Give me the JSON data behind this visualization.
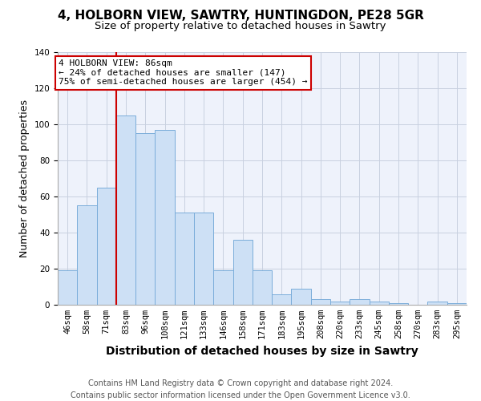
{
  "title1": "4, HOLBORN VIEW, SAWTRY, HUNTINGDON, PE28 5GR",
  "title2": "Size of property relative to detached houses in Sawtry",
  "xlabel": "Distribution of detached houses by size in Sawtry",
  "ylabel": "Number of detached properties",
  "categories": [
    "46sqm",
    "58sqm",
    "71sqm",
    "83sqm",
    "96sqm",
    "108sqm",
    "121sqm",
    "133sqm",
    "146sqm",
    "158sqm",
    "171sqm",
    "183sqm",
    "195sqm",
    "208sqm",
    "220sqm",
    "233sqm",
    "245sqm",
    "258sqm",
    "270sqm",
    "283sqm",
    "295sqm"
  ],
  "values": [
    19,
    55,
    65,
    105,
    95,
    97,
    51,
    51,
    19,
    36,
    19,
    6,
    9,
    3,
    2,
    3,
    2,
    1,
    0,
    2,
    1
  ],
  "bar_color": "#cde0f5",
  "bar_edge_color": "#7aadda",
  "bar_width": 1.0,
  "vline_x_index": 3,
  "vline_color": "#cc0000",
  "annotation_text": "4 HOLBORN VIEW: 86sqm\n← 24% of detached houses are smaller (147)\n75% of semi-detached houses are larger (454) →",
  "annotation_box_color": "#ffffff",
  "annotation_box_edge": "#cc0000",
  "ylim": [
    0,
    140
  ],
  "yticks": [
    0,
    20,
    40,
    60,
    80,
    100,
    120,
    140
  ],
  "footer": "Contains HM Land Registry data © Crown copyright and database right 2024.\nContains public sector information licensed under the Open Government Licence v3.0.",
  "bg_color": "#eef2fb",
  "grid_color": "#c8d0e0",
  "title_fontsize": 11,
  "subtitle_fontsize": 9.5,
  "axis_label_fontsize": 9,
  "xlabel_fontsize": 10,
  "tick_fontsize": 7.5,
  "footer_fontsize": 7,
  "annotation_fontsize": 8
}
